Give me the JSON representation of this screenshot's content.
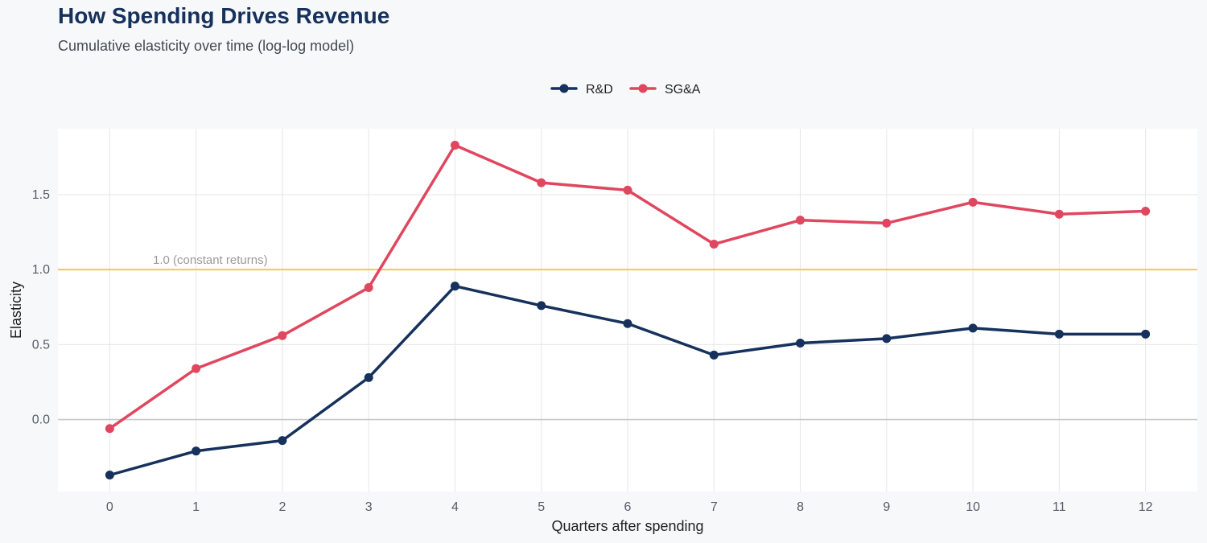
{
  "chart_data": {
    "type": "line",
    "title": "How Spending Drives Revenue",
    "subtitle": "Cumulative elasticity over time (log-log model)",
    "xlabel": "Quarters after spending",
    "ylabel": "Elasticity",
    "x": [
      0,
      1,
      2,
      3,
      4,
      5,
      6,
      7,
      8,
      9,
      10,
      11,
      12
    ],
    "xlim": [
      -0.6,
      12.6
    ],
    "ylim": [
      -0.48,
      1.94
    ],
    "yticks": [
      0.0,
      0.5,
      1.0,
      1.5
    ],
    "ytick_labels": [
      "0.0",
      "0.5",
      "1.0",
      "1.5"
    ],
    "grid": true,
    "legend_position": "top-center",
    "series": [
      {
        "name": "R&D",
        "color": "#15315c",
        "values": [
          -0.37,
          -0.21,
          -0.14,
          0.28,
          0.89,
          0.76,
          0.64,
          0.43,
          0.51,
          0.54,
          0.61,
          0.57,
          0.57
        ]
      },
      {
        "name": "SG&A",
        "color": "#e0475f",
        "values": [
          -0.06,
          0.34,
          0.56,
          0.88,
          1.83,
          1.58,
          1.53,
          1.17,
          1.33,
          1.31,
          1.45,
          1.37,
          1.39
        ]
      }
    ],
    "reference_line": {
      "y": 1.0,
      "label": "1.0 (constant returns)",
      "label_x": 0.5,
      "color": "#f0c850"
    },
    "zero_line_color": "#c8c8c8",
    "grid_color": "#e6e6e6",
    "panel_color": "#ffffff"
  }
}
